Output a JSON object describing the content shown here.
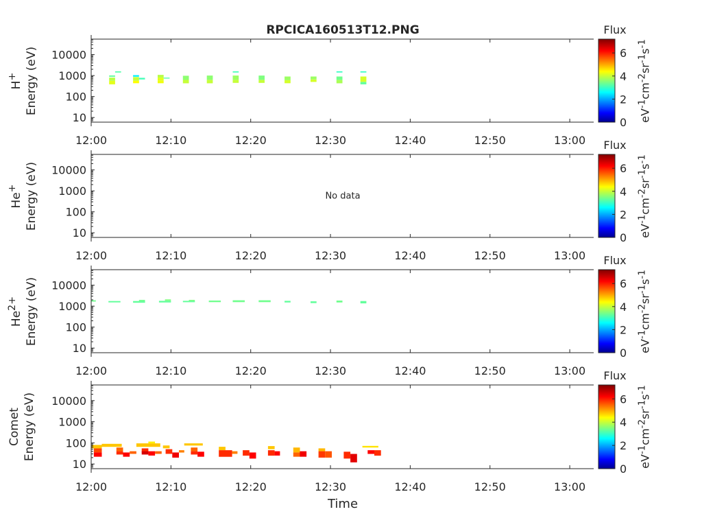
{
  "figure": {
    "title": "RPCICA160513T12.PNG",
    "xlabel": "Time",
    "no_data_text": "No data"
  },
  "colorbar": {
    "title": "Flux",
    "label": "eV<sup>-1</sup>cm<sup>-2</sup>sr<sup>-1</sup>s<sup>-1</sup>",
    "ticks": [
      "0",
      "2",
      "4",
      "6"
    ],
    "range": [
      0,
      7.2
    ],
    "colormap": "jet"
  },
  "chart_data": [
    {
      "type": "heatmap",
      "ion": "H<sup>+</sup>",
      "ylabel": "Energy (eV)",
      "yscale": "log",
      "ylim": [
        6,
        55000
      ],
      "yticks": [
        "10",
        "100",
        "1000",
        "10000"
      ],
      "xlim": [
        "12:00",
        "13:03"
      ],
      "xticks": [
        "12:00",
        "12:10",
        "12:20",
        "12:30",
        "12:40",
        "12:50",
        "13:00"
      ],
      "has_data": true,
      "cells": [
        {
          "t0": "12:02:15",
          "t1": "12:03:00",
          "e0": 380,
          "e1": 560,
          "v": 4.3
        },
        {
          "t0": "12:02:15",
          "t1": "12:03:00",
          "e0": 560,
          "e1": 800,
          "v": 4.0
        },
        {
          "t0": "12:02:15",
          "t1": "12:03:00",
          "e0": 880,
          "e1": 1020,
          "v": 3.4
        },
        {
          "t0": "12:03:00",
          "t1": "12:03:45",
          "e0": 1400,
          "e1": 1600,
          "v": 3.3
        },
        {
          "t0": "12:05:15",
          "t1": "12:06:00",
          "e0": 430,
          "e1": 560,
          "v": 4.5
        },
        {
          "t0": "12:05:15",
          "t1": "12:06:00",
          "e0": 560,
          "e1": 850,
          "v": 4.1
        },
        {
          "t0": "12:05:15",
          "t1": "12:06:00",
          "e0": 880,
          "e1": 1050,
          "v": 2.6
        },
        {
          "t0": "12:06:00",
          "t1": "12:06:45",
          "e0": 650,
          "e1": 780,
          "v": 3.2
        },
        {
          "t0": "12:08:20",
          "t1": "12:09:05",
          "e0": 430,
          "e1": 560,
          "v": 4.4
        },
        {
          "t0": "12:08:20",
          "t1": "12:09:05",
          "e0": 560,
          "e1": 800,
          "v": 4.3
        },
        {
          "t0": "12:08:20",
          "t1": "12:09:05",
          "e0": 800,
          "e1": 1080,
          "v": 4.0
        },
        {
          "t0": "12:09:05",
          "t1": "12:09:50",
          "e0": 720,
          "e1": 800,
          "v": 3.3
        },
        {
          "t0": "12:11:30",
          "t1": "12:12:15",
          "e0": 430,
          "e1": 620,
          "v": 4.1
        },
        {
          "t0": "12:11:30",
          "t1": "12:12:15",
          "e0": 620,
          "e1": 980,
          "v": 3.7
        },
        {
          "t0": "12:14:30",
          "t1": "12:15:15",
          "e0": 430,
          "e1": 620,
          "v": 4.1
        },
        {
          "t0": "12:14:30",
          "t1": "12:15:15",
          "e0": 620,
          "e1": 1000,
          "v": 3.7
        },
        {
          "t0": "12:17:45",
          "t1": "12:18:30",
          "e0": 450,
          "e1": 620,
          "v": 4.1
        },
        {
          "t0": "12:17:45",
          "t1": "12:18:30",
          "e0": 620,
          "e1": 1000,
          "v": 3.8
        },
        {
          "t0": "12:17:45",
          "t1": "12:18:30",
          "e0": 1400,
          "e1": 1600,
          "v": 3.2
        },
        {
          "t0": "12:21:00",
          "t1": "12:21:45",
          "e0": 450,
          "e1": 620,
          "v": 4.1
        },
        {
          "t0": "12:21:00",
          "t1": "12:21:45",
          "e0": 620,
          "e1": 1000,
          "v": 3.6
        },
        {
          "t0": "12:24:15",
          "t1": "12:25:00",
          "e0": 430,
          "e1": 600,
          "v": 4.2
        },
        {
          "t0": "12:24:15",
          "t1": "12:25:00",
          "e0": 600,
          "e1": 900,
          "v": 3.8
        },
        {
          "t0": "12:27:30",
          "t1": "12:28:15",
          "e0": 500,
          "e1": 650,
          "v": 4.2
        },
        {
          "t0": "12:27:30",
          "t1": "12:28:15",
          "e0": 650,
          "e1": 900,
          "v": 3.8
        },
        {
          "t0": "12:30:45",
          "t1": "12:31:30",
          "e0": 430,
          "e1": 620,
          "v": 3.9
        },
        {
          "t0": "12:30:45",
          "t1": "12:31:30",
          "e0": 620,
          "e1": 900,
          "v": 3.5
        },
        {
          "t0": "12:30:45",
          "t1": "12:31:30",
          "e0": 1400,
          "e1": 1600,
          "v": 3.1
        },
        {
          "t0": "12:33:45",
          "t1": "12:34:30",
          "e0": 380,
          "e1": 500,
          "v": 3.4
        },
        {
          "t0": "12:33:45",
          "t1": "12:34:30",
          "e0": 500,
          "e1": 900,
          "v": 4.2
        },
        {
          "t0": "12:33:45",
          "t1": "12:34:30",
          "e0": 1400,
          "e1": 1600,
          "v": 3.1
        }
      ]
    },
    {
      "type": "heatmap",
      "ion": "He<sup>+</sup>",
      "ylabel": "Energy (eV)",
      "yscale": "log",
      "ylim": [
        6,
        55000
      ],
      "yticks": [
        "10",
        "100",
        "1000",
        "10000"
      ],
      "xlim": [
        "12:00",
        "13:03"
      ],
      "xticks": [
        "12:00",
        "12:10",
        "12:20",
        "12:30",
        "12:40",
        "12:50",
        "13:00"
      ],
      "has_data": false,
      "cells": []
    },
    {
      "type": "heatmap",
      "ion": "He<sup>2+</sup>",
      "ylabel": "Energy (eV)",
      "yscale": "log",
      "ylim": [
        6,
        55000
      ],
      "yticks": [
        "10",
        "100",
        "1000",
        "10000"
      ],
      "xlim": [
        "12:00",
        "13:03"
      ],
      "xticks": [
        "12:00",
        "12:10",
        "12:20",
        "12:30",
        "12:40",
        "12:50",
        "13:00"
      ],
      "has_data": true,
      "cells": [
        {
          "t0": "12:00:00",
          "t1": "12:00:35",
          "e0": 1650,
          "e1": 1900,
          "v": 3.5
        },
        {
          "t0": "12:02:10",
          "t1": "12:03:40",
          "e0": 1500,
          "e1": 1750,
          "v": 3.4
        },
        {
          "t0": "12:05:15",
          "t1": "12:06:45",
          "e0": 1450,
          "e1": 1750,
          "v": 3.4
        },
        {
          "t0": "12:06:00",
          "t1": "12:06:45",
          "e0": 1750,
          "e1": 2000,
          "v": 3.5
        },
        {
          "t0": "12:08:30",
          "t1": "12:10:00",
          "e0": 1500,
          "e1": 1800,
          "v": 3.4
        },
        {
          "t0": "12:09:15",
          "t1": "12:10:00",
          "e0": 1800,
          "e1": 2100,
          "v": 3.6
        },
        {
          "t0": "12:11:30",
          "t1": "12:13:00",
          "e0": 1550,
          "e1": 1800,
          "v": 3.4
        },
        {
          "t0": "12:12:15",
          "t1": "12:13:00",
          "e0": 1800,
          "e1": 2000,
          "v": 3.6
        },
        {
          "t0": "12:14:45",
          "t1": "12:16:15",
          "e0": 1550,
          "e1": 1850,
          "v": 3.5
        },
        {
          "t0": "12:17:45",
          "t1": "12:19:15",
          "e0": 1550,
          "e1": 1900,
          "v": 3.5
        },
        {
          "t0": "12:21:00",
          "t1": "12:22:30",
          "e0": 1550,
          "e1": 1900,
          "v": 3.5
        },
        {
          "t0": "12:24:15",
          "t1": "12:25:00",
          "e0": 1500,
          "e1": 1800,
          "v": 3.4
        },
        {
          "t0": "12:27:30",
          "t1": "12:28:15",
          "e0": 1400,
          "e1": 1700,
          "v": 3.4
        },
        {
          "t0": "12:30:45",
          "t1": "12:31:30",
          "e0": 1500,
          "e1": 1850,
          "v": 3.5
        },
        {
          "t0": "12:33:45",
          "t1": "12:34:30",
          "e0": 1350,
          "e1": 1750,
          "v": 3.4
        }
      ]
    },
    {
      "type": "heatmap",
      "ion": "Comet",
      "ylabel": "Energy (eV)",
      "yscale": "log",
      "ylim": [
        6,
        55000
      ],
      "yticks": [
        "10",
        "100",
        "1000",
        "10000"
      ],
      "xlim": [
        "12:00",
        "13:03"
      ],
      "xticks": [
        "12:00",
        "12:10",
        "12:20",
        "12:30",
        "12:40",
        "12:50",
        "13:00"
      ],
      "has_data": true,
      "cells": [
        {
          "t0": "12:00:00",
          "t1": "12:01:20",
          "e0": 55,
          "e1": 80,
          "v": 4.9
        },
        {
          "t0": "12:00:20",
          "t1": "12:01:20",
          "e0": 35,
          "e1": 55,
          "v": 5.8
        },
        {
          "t0": "12:00:20",
          "t1": "12:01:20",
          "e0": 22,
          "e1": 35,
          "v": 6.3
        },
        {
          "t0": "12:01:20",
          "t1": "12:03:50",
          "e0": 65,
          "e1": 90,
          "v": 4.9
        },
        {
          "t0": "12:03:10",
          "t1": "12:04:00",
          "e0": 40,
          "e1": 60,
          "v": 5.6
        },
        {
          "t0": "12:03:10",
          "t1": "12:04:00",
          "e0": 28,
          "e1": 40,
          "v": 6.0
        },
        {
          "t0": "12:04:00",
          "t1": "12:04:50",
          "e0": 22,
          "e1": 35,
          "v": 6.3
        },
        {
          "t0": "12:04:50",
          "t1": "12:05:40",
          "e0": 30,
          "e1": 40,
          "v": 5.6
        },
        {
          "t0": "12:05:40",
          "t1": "12:08:40",
          "e0": 65,
          "e1": 95,
          "v": 4.9
        },
        {
          "t0": "12:06:20",
          "t1": "12:07:10",
          "e0": 35,
          "e1": 55,
          "v": 6.0
        },
        {
          "t0": "12:06:20",
          "t1": "12:07:10",
          "e0": 28,
          "e1": 40,
          "v": 6.6
        },
        {
          "t0": "12:07:10",
          "t1": "12:08:00",
          "e0": 25,
          "e1": 40,
          "v": 6.3
        },
        {
          "t0": "12:07:10",
          "t1": "12:08:00",
          "e0": 95,
          "e1": 115,
          "v": 4.6
        },
        {
          "t0": "12:08:00",
          "t1": "12:08:50",
          "e0": 30,
          "e1": 40,
          "v": 5.6
        },
        {
          "t0": "12:09:00",
          "t1": "12:09:50",
          "e0": 55,
          "e1": 75,
          "v": 4.9
        },
        {
          "t0": "12:09:20",
          "t1": "12:10:10",
          "e0": 30,
          "e1": 50,
          "v": 6.0
        },
        {
          "t0": "12:10:10",
          "t1": "12:11:00",
          "e0": 20,
          "e1": 35,
          "v": 6.4
        },
        {
          "t0": "12:11:00",
          "t1": "12:11:40",
          "e0": 35,
          "e1": 45,
          "v": 5.4
        },
        {
          "t0": "12:11:40",
          "t1": "12:14:00",
          "e0": 75,
          "e1": 95,
          "v": 4.9
        },
        {
          "t0": "12:12:30",
          "t1": "12:13:20",
          "e0": 40,
          "e1": 60,
          "v": 5.6
        },
        {
          "t0": "12:12:30",
          "t1": "12:13:20",
          "e0": 28,
          "e1": 40,
          "v": 6.0
        },
        {
          "t0": "12:13:20",
          "t1": "12:14:10",
          "e0": 22,
          "e1": 38,
          "v": 6.3
        },
        {
          "t0": "12:16:00",
          "t1": "12:16:50",
          "e0": 45,
          "e1": 65,
          "v": 4.9
        },
        {
          "t0": "12:16:00",
          "t1": "12:17:40",
          "e0": 22,
          "e1": 45,
          "v": 6.0
        },
        {
          "t0": "12:17:40",
          "t1": "12:18:20",
          "e0": 30,
          "e1": 40,
          "v": 5.4
        },
        {
          "t0": "12:19:00",
          "t1": "12:19:50",
          "e0": 25,
          "e1": 45,
          "v": 6.0
        },
        {
          "t0": "12:19:50",
          "t1": "12:20:40",
          "e0": 18,
          "e1": 35,
          "v": 6.3
        },
        {
          "t0": "12:22:10",
          "t1": "12:23:00",
          "e0": 50,
          "e1": 70,
          "v": 4.9
        },
        {
          "t0": "12:22:10",
          "t1": "12:23:00",
          "e0": 25,
          "e1": 45,
          "v": 6.0
        },
        {
          "t0": "12:23:00",
          "t1": "12:23:40",
          "e0": 25,
          "e1": 40,
          "v": 6.3
        },
        {
          "t0": "12:25:20",
          "t1": "12:26:10",
          "e0": 35,
          "e1": 60,
          "v": 5.0
        },
        {
          "t0": "12:25:20",
          "t1": "12:26:10",
          "e0": 22,
          "e1": 35,
          "v": 5.6
        },
        {
          "t0": "12:26:10",
          "t1": "12:27:00",
          "e0": 22,
          "e1": 40,
          "v": 6.4
        },
        {
          "t0": "12:28:30",
          "t1": "12:29:20",
          "e0": 40,
          "e1": 55,
          "v": 5.0
        },
        {
          "t0": "12:28:30",
          "t1": "12:29:20",
          "e0": 20,
          "e1": 40,
          "v": 5.9
        },
        {
          "t0": "12:29:20",
          "t1": "12:30:10",
          "e0": 20,
          "e1": 40,
          "v": 5.7
        },
        {
          "t0": "12:31:40",
          "t1": "12:32:30",
          "e0": 18,
          "e1": 38,
          "v": 6.0
        },
        {
          "t0": "12:32:30",
          "t1": "12:33:20",
          "e0": 12,
          "e1": 30,
          "v": 6.5
        },
        {
          "t0": "12:34:00",
          "t1": "12:36:00",
          "e0": 60,
          "e1": 72,
          "v": 4.7
        },
        {
          "t0": "12:34:40",
          "t1": "12:35:30",
          "e0": 30,
          "e1": 45,
          "v": 6.3
        },
        {
          "t0": "12:35:30",
          "t1": "12:36:20",
          "e0": 25,
          "e1": 45,
          "v": 6.0
        }
      ]
    }
  ]
}
